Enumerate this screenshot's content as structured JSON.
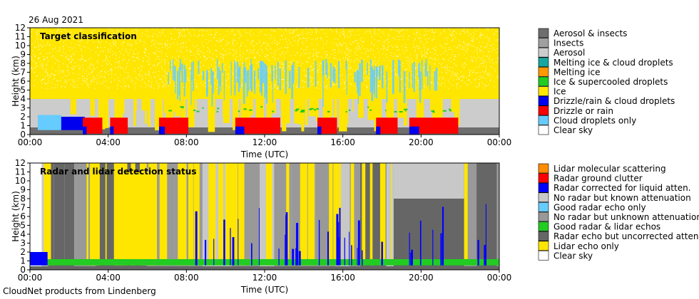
{
  "date": "26 Aug 2021",
  "credit": "CloudNet products from Lindenberg",
  "colors": {
    "aerosol_insects": "#6e6e6e",
    "insects": "#a0a0a0",
    "aerosol": "#cccccc",
    "melting_cloud": "#1aa6a0",
    "melting_ice": "#ff9900",
    "ice_supercooled": "#22cc22",
    "ice": "#ffe600",
    "drizzle_cloud": "#0000ee",
    "drizzle_rain": "#ff0000",
    "cloud_droplets": "#66ccff",
    "clear_sky": "#ffffff",
    "lidar_molecular": "#ff8c00",
    "radar_clutter": "#ff0000",
    "radar_corrected": "#0000ff",
    "no_radar_known": "#c8c8c8",
    "good_radar_only": "#66ccff",
    "no_radar_unknown": "#999999",
    "good_radar_lidar": "#22cc22",
    "radar_uncorrected": "#666666",
    "lidar_only": "#ffe600"
  },
  "chart_data": [
    {
      "type": "heatmap",
      "title": "Target classification",
      "xlabel": "Time (UTC)",
      "ylabel": "Height (km)",
      "x_ticks": [
        "00:00",
        "04:00",
        "08:00",
        "12:00",
        "16:00",
        "20:00",
        "00:00"
      ],
      "xlim": [
        0,
        24
      ],
      "y_ticks": [
        0,
        1,
        2,
        3,
        4,
        5,
        6,
        7,
        8,
        9,
        10,
        11,
        12
      ],
      "ylim": [
        0,
        12
      ],
      "legend": [
        {
          "label": "Aerosol & insects",
          "color": "#6e6e6e"
        },
        {
          "label": "Insects",
          "color": "#a0a0a0"
        },
        {
          "label": "Aerosol",
          "color": "#cccccc"
        },
        {
          "label": "Melting ice & cloud droplets",
          "color": "#1aa6a0"
        },
        {
          "label": "Melting ice",
          "color": "#ff9900"
        },
        {
          "label": "Ice & supercooled droplets",
          "color": "#22cc22"
        },
        {
          "label": "Ice",
          "color": "#ffe600"
        },
        {
          "label": "Drizzle/rain & cloud droplets",
          "color": "#0000ee"
        },
        {
          "label": "Drizzle or rain",
          "color": "#ff0000"
        },
        {
          "label": "Cloud droplets only",
          "color": "#66ccff"
        },
        {
          "label": "Clear sky",
          "color": "#ffffff"
        }
      ],
      "legend_position": "right",
      "rain_intervals_hours": [
        [
          2.7,
          3.7
        ],
        [
          4.1,
          5.0
        ],
        [
          6.6,
          8.1
        ],
        [
          10.5,
          12.8
        ],
        [
          14.7,
          15.7
        ],
        [
          17.7,
          18.8
        ],
        [
          19.4,
          21.9
        ]
      ]
    },
    {
      "type": "heatmap",
      "title": "Radar and lidar detection status",
      "xlabel": "Time (UTC)",
      "ylabel": "Height (km)",
      "x_ticks": [
        "00:00",
        "04:00",
        "08:00",
        "12:00",
        "16:00",
        "20:00",
        "00:00"
      ],
      "xlim": [
        0,
        24
      ],
      "y_ticks": [
        0,
        1,
        2,
        3,
        4,
        5,
        6,
        7,
        8,
        9,
        10,
        11,
        12
      ],
      "ylim": [
        0,
        12
      ],
      "legend": [
        {
          "label": "Lidar molecular scattering",
          "color": "#ff8c00"
        },
        {
          "label": "Radar ground clutter",
          "color": "#ff0000"
        },
        {
          "label": "Radar corrected for liquid atten.",
          "color": "#0000ff"
        },
        {
          "label": "No radar but known attenuation",
          "color": "#c8c8c8"
        },
        {
          "label": "Good radar echo only",
          "color": "#66ccff"
        },
        {
          "label": "No radar but unknown attenuation",
          "color": "#999999"
        },
        {
          "label": "Good radar & lidar echos",
          "color": "#22cc22"
        },
        {
          "label": "Radar echo but uncorrected atten.",
          "color": "#666666"
        },
        {
          "label": "Lidar echo only",
          "color": "#ffe600"
        },
        {
          "label": "Clear sky",
          "color": "#ffffff"
        }
      ],
      "legend_position": "right",
      "dense_cloud_interval_hours": [
        18.6,
        22.2
      ]
    }
  ]
}
